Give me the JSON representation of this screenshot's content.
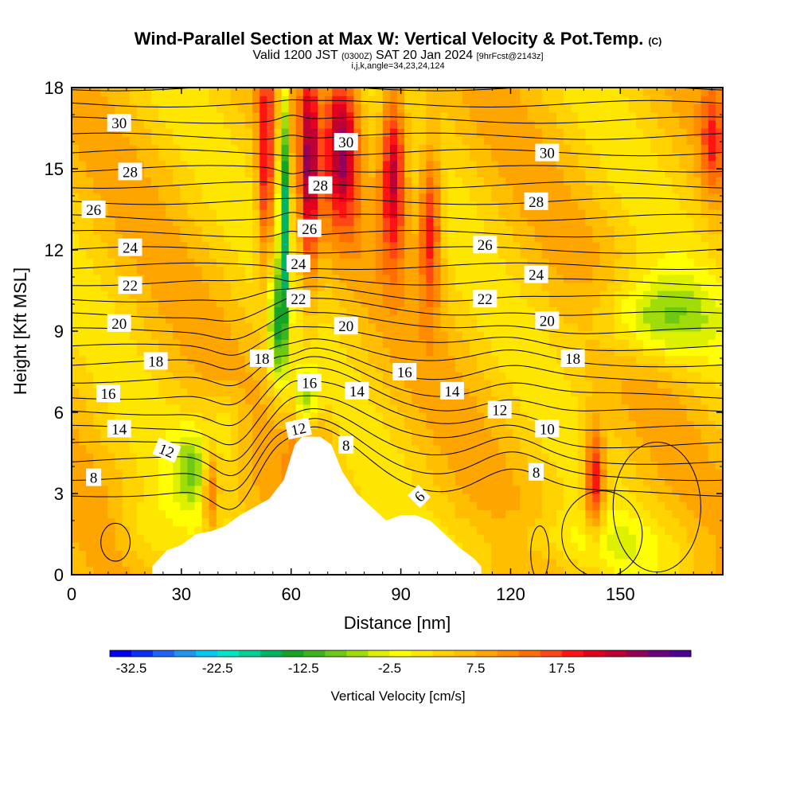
{
  "header": {
    "title": "Wind-Parallel Section at Max W: Vertical Velocity & Pot.Temp.",
    "title_mark": "(C)",
    "valid_prefix": "Valid 1200 JST",
    "valid_utc": "(0300Z)",
    "valid_date": "SAT 20 Jan 2024",
    "forecast": "[9hrFcst@2143z]",
    "section_params": "i,j,k,angle=34,23,24,124"
  },
  "chart_data": {
    "type": "heatmap",
    "xlabel": "Distance [nm]",
    "ylabel": "Height [Kft MSL]",
    "xlim": [
      0,
      178
    ],
    "ylim": [
      0,
      18
    ],
    "x_ticks": [
      0,
      30,
      60,
      90,
      120,
      150
    ],
    "y_ticks": [
      0,
      3,
      6,
      9,
      12,
      15,
      18
    ],
    "colorbar": {
      "label": "Vertical Velocity [cm/s]",
      "min": -35,
      "step": 2.5,
      "colors": [
        "#0000f0",
        "#0a32f5",
        "#1e64f5",
        "#1e96f0",
        "#00c8f0",
        "#00e6c8",
        "#00d296",
        "#00b464",
        "#14a528",
        "#3cb41e",
        "#6ec814",
        "#a0dc0a",
        "#dcf000",
        "#ffff00",
        "#ffe600",
        "#ffd200",
        "#ffbe00",
        "#ffa500",
        "#ff8c00",
        "#ff6e00",
        "#ff4614",
        "#ff1414",
        "#e1001e",
        "#be0032",
        "#96005a",
        "#6e0082",
        "#500096"
      ],
      "tick_values": [
        -32.5,
        -22.5,
        -12.5,
        -2.5,
        7.5,
        17.5
      ],
      "tick_labels": [
        "-32.5",
        "-22.5",
        "-12.5",
        "-2.5",
        "7.5",
        "17.5"
      ]
    },
    "terrain": [
      [
        22,
        0.3
      ],
      [
        26,
        0.9
      ],
      [
        30,
        1.1
      ],
      [
        34,
        1.5
      ],
      [
        38,
        1.6
      ],
      [
        42,
        1.8
      ],
      [
        46,
        2.2
      ],
      [
        50,
        2.5
      ],
      [
        54,
        2.8
      ],
      [
        58,
        3.5
      ],
      [
        61,
        4.8
      ],
      [
        63,
        5.1
      ],
      [
        65,
        5.1
      ],
      [
        68,
        5.1
      ],
      [
        71,
        4.8
      ],
      [
        74,
        3.8
      ],
      [
        78,
        3.0
      ],
      [
        82,
        2.5
      ],
      [
        86,
        2.0
      ],
      [
        90,
        2.2
      ],
      [
        94,
        2.2
      ],
      [
        98,
        2.0
      ],
      [
        102,
        1.5
      ],
      [
        106,
        1.0
      ],
      [
        110,
        0.6
      ],
      [
        112,
        0.3
      ]
    ],
    "theta_labels": [
      {
        "text": "30",
        "x": 13,
        "y": 16.7
      },
      {
        "text": "28",
        "x": 16,
        "y": 14.9
      },
      {
        "text": "26",
        "x": 6,
        "y": 13.5
      },
      {
        "text": "24",
        "x": 16,
        "y": 12.1
      },
      {
        "text": "22",
        "x": 16,
        "y": 10.7
      },
      {
        "text": "20",
        "x": 13,
        "y": 9.3
      },
      {
        "text": "18",
        "x": 23,
        "y": 7.9
      },
      {
        "text": "16",
        "x": 10,
        "y": 6.7
      },
      {
        "text": "14",
        "x": 13,
        "y": 5.4
      },
      {
        "text": "12",
        "x": 26,
        "y": 4.6,
        "rot": 22
      },
      {
        "text": "8",
        "x": 6,
        "y": 3.6
      },
      {
        "text": "30",
        "x": 75,
        "y": 16.0
      },
      {
        "text": "28",
        "x": 68,
        "y": 14.4
      },
      {
        "text": "26",
        "x": 65,
        "y": 12.8
      },
      {
        "text": "24",
        "x": 62,
        "y": 11.5
      },
      {
        "text": "22",
        "x": 62,
        "y": 10.2
      },
      {
        "text": "18",
        "x": 52,
        "y": 8.0
      },
      {
        "text": "16",
        "x": 65,
        "y": 7.1
      },
      {
        "text": "12",
        "x": 62,
        "y": 5.4,
        "rot": -12
      },
      {
        "text": "20",
        "x": 75,
        "y": 9.2
      },
      {
        "text": "14",
        "x": 78,
        "y": 6.8
      },
      {
        "text": "16",
        "x": 91,
        "y": 7.5
      },
      {
        "text": "8",
        "x": 75,
        "y": 4.8
      },
      {
        "text": "6",
        "x": 95,
        "y": 2.9,
        "rot": -45
      },
      {
        "text": "30",
        "x": 130,
        "y": 15.6
      },
      {
        "text": "28",
        "x": 127,
        "y": 13.8
      },
      {
        "text": "26",
        "x": 113,
        "y": 12.2
      },
      {
        "text": "24",
        "x": 127,
        "y": 11.1
      },
      {
        "text": "22",
        "x": 113,
        "y": 10.2
      },
      {
        "text": "20",
        "x": 130,
        "y": 9.4
      },
      {
        "text": "18",
        "x": 137,
        "y": 8.0
      },
      {
        "text": "14",
        "x": 104,
        "y": 6.8
      },
      {
        "text": "12",
        "x": 117,
        "y": 6.1
      },
      {
        "text": "10",
        "x": 130,
        "y": 5.4
      },
      {
        "text": "8",
        "x": 127,
        "y": 3.8
      }
    ]
  }
}
